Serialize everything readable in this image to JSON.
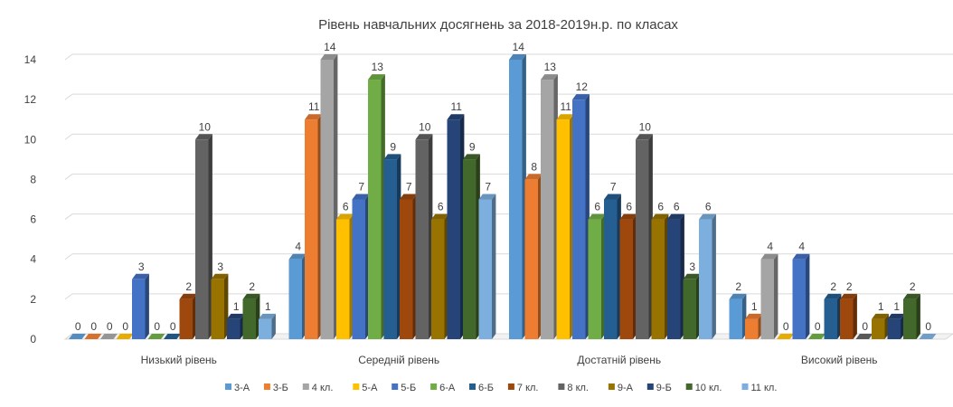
{
  "chart_data": {
    "type": "bar",
    "title": "Рівень навчальних досягнень за 2018-2019н.р. по класах",
    "xlabel": "",
    "ylabel": "",
    "ylim": [
      0,
      14
    ],
    "yticks": [
      0,
      2,
      4,
      6,
      8,
      10,
      12,
      14
    ],
    "grid": true,
    "legend_position": "bottom",
    "categories": [
      "Низький рівень",
      "Середній рівень",
      "Достатній рівень",
      "Високий рівень"
    ],
    "series": [
      {
        "name": "3-А",
        "color": "#5B9BD5",
        "values": [
          0,
          4,
          14,
          2
        ]
      },
      {
        "name": "3-Б",
        "color": "#ED7D31",
        "values": [
          0,
          11,
          8,
          1
        ]
      },
      {
        "name": "4 кл.",
        "color": "#A5A5A5",
        "values": [
          0,
          14,
          13,
          4
        ]
      },
      {
        "name": "5-А",
        "color": "#FFC000",
        "values": [
          0,
          6,
          11,
          0
        ]
      },
      {
        "name": "5-Б",
        "color": "#4472C4",
        "values": [
          3,
          7,
          12,
          4
        ]
      },
      {
        "name": "6-А",
        "color": "#70AD47",
        "values": [
          0,
          13,
          6,
          0
        ]
      },
      {
        "name": "6-Б",
        "color": "#255E91",
        "values": [
          0,
          9,
          7,
          2
        ]
      },
      {
        "name": "7 кл.",
        "color": "#9E480E",
        "values": [
          2,
          7,
          6,
          2
        ]
      },
      {
        "name": "8 кл.",
        "color": "#636363",
        "values": [
          10,
          10,
          10,
          0
        ]
      },
      {
        "name": "9-А",
        "color": "#997300",
        "values": [
          3,
          6,
          6,
          1
        ]
      },
      {
        "name": "9-Б",
        "color": "#264478",
        "values": [
          1,
          11,
          6,
          1
        ]
      },
      {
        "name": "10 кл.",
        "color": "#43682B",
        "values": [
          2,
          9,
          3,
          2
        ]
      },
      {
        "name": "11 кл.",
        "color": "#7CAFDD",
        "values": [
          1,
          7,
          6,
          0
        ]
      }
    ]
  }
}
